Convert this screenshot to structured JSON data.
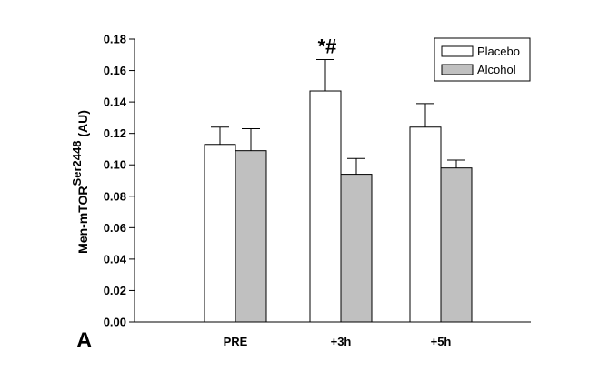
{
  "chart_data": {
    "type": "bar",
    "panel_label": "A",
    "ylabel": {
      "main": "Men-mTOR",
      "superscript": "Ser2448",
      "unit": " (AU)"
    },
    "categories": [
      "PRE",
      "+3h",
      "+5h"
    ],
    "series": [
      {
        "name": "Placebo",
        "values": [
          0.113,
          0.147,
          0.124
        ],
        "errors": [
          0.011,
          0.02,
          0.015
        ],
        "color": "#ffffff"
      },
      {
        "name": "Alcohol",
        "values": [
          0.109,
          0.094,
          0.098
        ],
        "errors": [
          0.014,
          0.01,
          0.005
        ],
        "color": "#c0c0c0"
      }
    ],
    "ylim": [
      0,
      0.18
    ],
    "yticks": [
      "0.00",
      "0.02",
      "0.04",
      "0.06",
      "0.08",
      "0.10",
      "0.12",
      "0.14",
      "0.16",
      "0.18"
    ],
    "annotations": [
      {
        "text": "*#",
        "category": "+3h",
        "series": "Placebo"
      }
    ],
    "legend_position": "top-right",
    "grid": false
  }
}
